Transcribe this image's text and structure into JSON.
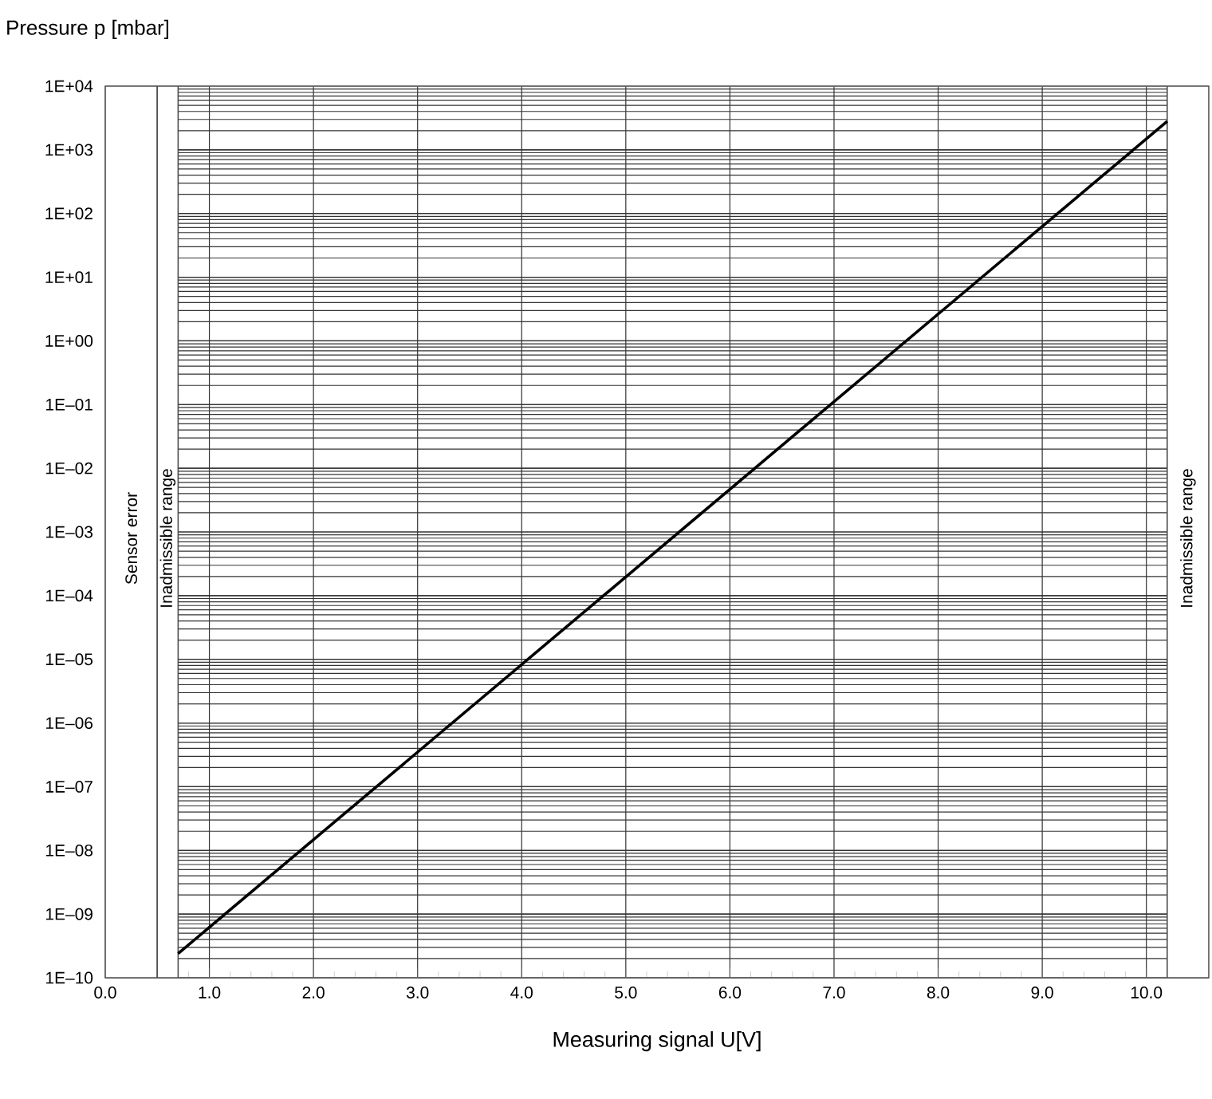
{
  "chart_data": {
    "type": "line",
    "xlabel": "Measuring signal U[V]",
    "ylabel": "Pressure p [mbar]",
    "series": [
      {
        "color": "#000000",
        "x": [
          0.7,
          10.2
        ],
        "values": [
          2.4e-10,
          2800
        ]
      }
    ],
    "log": "y",
    "grid": true,
    "marker": "none",
    "line_style": "solid",
    "xlim": [
      0,
      10.6
    ],
    "ylim": [
      1e-10,
      10000
    ],
    "xticks": [
      {
        "value": 0,
        "label": "0.0"
      },
      {
        "value": 1,
        "label": "1.0"
      },
      {
        "value": 2,
        "label": "2.0"
      },
      {
        "value": 3,
        "label": "3.0"
      },
      {
        "value": 4,
        "label": "4.0"
      },
      {
        "value": 5,
        "label": "5.0"
      },
      {
        "value": 6,
        "label": "6.0"
      },
      {
        "value": 7,
        "label": "7.0"
      },
      {
        "value": 8,
        "label": "8.0"
      },
      {
        "value": 9,
        "label": "9.0"
      },
      {
        "value": 10,
        "label": "10.0"
      }
    ],
    "yticks": [
      {
        "value": 1e-10,
        "label": "1E–10"
      },
      {
        "value": 1e-09,
        "label": "1E–09"
      },
      {
        "value": 1e-08,
        "label": "1E–08"
      },
      {
        "value": 1e-07,
        "label": "1E–07"
      },
      {
        "value": 1e-06,
        "label": "1E–06"
      },
      {
        "value": 1e-05,
        "label": "1E–05"
      },
      {
        "value": 0.0001,
        "label": "1E–04"
      },
      {
        "value": 0.001,
        "label": "1E–03"
      },
      {
        "value": 0.01,
        "label": "1E–02"
      },
      {
        "value": 0.1,
        "label": "1E–01"
      },
      {
        "value": 1,
        "label": "1E+00"
      },
      {
        "value": 10,
        "label": "1E+01"
      },
      {
        "value": 100,
        "label": "1E+02"
      },
      {
        "value": 1000,
        "label": "1E+03"
      },
      {
        "value": 10000,
        "label": "1E+04"
      }
    ],
    "bands": [
      {
        "axis": "x",
        "from": 0,
        "to": 0.5,
        "label": "Sensor error",
        "color": "#ffffff"
      },
      {
        "axis": "x",
        "from": 0.5,
        "to": 0.7,
        "label": "Inadmissible range",
        "color": "#ffffff"
      },
      {
        "axis": "x",
        "from": 10.2,
        "to": 10.6,
        "label": "Inadmissible range",
        "color": "#ffffff"
      }
    ]
  }
}
